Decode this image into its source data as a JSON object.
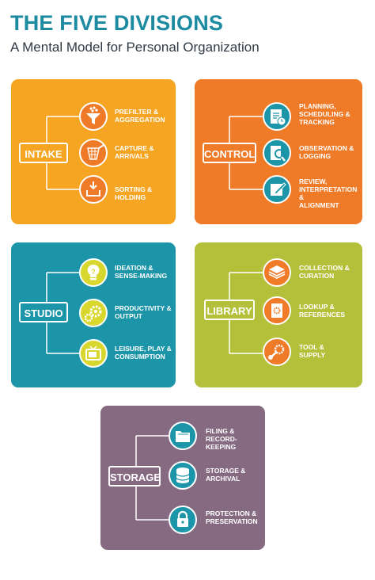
{
  "header": {
    "title": "THE FIVE DIVISIONS",
    "subtitle": "A Mental Model for Personal Organization"
  },
  "colors": {
    "title": "#1c8aa0",
    "intake": "#f5a522",
    "control": "#ef7a27",
    "studio": "#1d95a9",
    "library": "#b4c03a",
    "storage": "#866a82",
    "icon_fill": "#d8d72e"
  },
  "divisions": {
    "intake": {
      "label": "INTAKE",
      "items": [
        {
          "line1": "PREFILTER &",
          "line2": "AGGREGATION",
          "icon": "funnel-icon"
        },
        {
          "line1": "CAPTURE &",
          "line2": "ARRIVALS",
          "icon": "net-icon"
        },
        {
          "line1": "SORTING &",
          "line2": "HOLDING",
          "icon": "inbox-tray-icon"
        }
      ]
    },
    "control": {
      "label": "CONTROL",
      "items": [
        {
          "line1": "PLANNING,",
          "line2": "SCHEDULING &",
          "line3": "TRACKING",
          "icon": "clipboard-clock-icon"
        },
        {
          "line1": "OBSERVATION &",
          "line2": "LOGGING",
          "icon": "document-magnifier-icon"
        },
        {
          "line1": "REVIEW,",
          "line2": "INTERPRETATION &",
          "line3": "ALIGNMENT",
          "icon": "pencil-pad-icon"
        }
      ]
    },
    "studio": {
      "label": "STUDIO",
      "items": [
        {
          "line1": "IDEATION &",
          "line2": "SENSE-MAKING",
          "icon": "lightbulb-icon"
        },
        {
          "line1": "PRODUCTIVITY &",
          "line2": "OUTPUT",
          "icon": "gears-icon"
        },
        {
          "line1": "LEISURE, PLAY &",
          "line2": "CONSUMPTION",
          "icon": "tv-icon"
        }
      ]
    },
    "library": {
      "label": "LIBRARY",
      "items": [
        {
          "line1": "COLLECTION &",
          "line2": "CURATION",
          "icon": "layers-icon"
        },
        {
          "line1": "LOOKUP &",
          "line2": "REFERENCES",
          "icon": "reference-book-icon"
        },
        {
          "line1": "TOOL &",
          "line2": "SUPPLY",
          "icon": "tools-icon"
        }
      ]
    },
    "storage": {
      "label": "STORAGE",
      "items": [
        {
          "line1": "FILING &",
          "line2": "RECORD-KEEPING",
          "icon": "folder-icon"
        },
        {
          "line1": "STORAGE &",
          "line2": "ARCHIVAL",
          "icon": "database-icon"
        },
        {
          "line1": "PROTECTION &",
          "line2": "PRESERVATION",
          "icon": "padlock-icon"
        }
      ]
    }
  }
}
